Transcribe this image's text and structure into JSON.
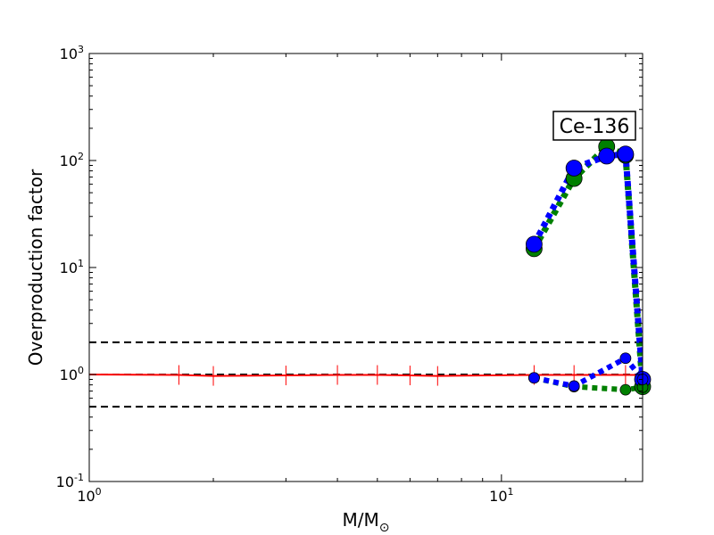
{
  "chart_data": {
    "type": "line",
    "xscale": "log",
    "yscale": "log",
    "xlim": [
      1,
      22
    ],
    "ylim": [
      0.1,
      1000
    ],
    "grid": false,
    "xlabel": "M/M",
    "xlabel_sub": "⊙",
    "ylabel": "Overproduction factor",
    "annotation": "Ce-136",
    "x_ticks": [
      {
        "value": 1,
        "base": "10",
        "exp": "0"
      },
      {
        "value": 10,
        "base": "10",
        "exp": "1"
      }
    ],
    "y_ticks": [
      {
        "value": 0.1,
        "base": "10",
        "exp": "-1"
      },
      {
        "value": 1,
        "base": "10",
        "exp": "0"
      },
      {
        "value": 10,
        "base": "10",
        "exp": "1"
      },
      {
        "value": 100,
        "base": "10",
        "exp": "2"
      },
      {
        "value": 1000,
        "base": "10",
        "exp": "3"
      }
    ],
    "reference_lines": [
      {
        "y": 2,
        "color": "#000000",
        "style": "dashed"
      },
      {
        "y": 1,
        "color": "#000000",
        "style": "dashed"
      },
      {
        "y": 0.5,
        "color": "#000000",
        "style": "dashed"
      }
    ],
    "series": [
      {
        "color": "#ff0000",
        "style": "solid",
        "marker": "vline",
        "points": [
          [
            1,
            1.0
          ],
          [
            1.65,
            0.99
          ],
          [
            2,
            0.97
          ],
          [
            3,
            0.98
          ],
          [
            4,
            0.99
          ],
          [
            5,
            0.99
          ],
          [
            6,
            0.98
          ],
          [
            7,
            0.97
          ],
          [
            12,
            0.99
          ],
          [
            15,
            0.99
          ],
          [
            20,
            0.99
          ],
          [
            22,
            0.99
          ]
        ]
      },
      {
        "color": "#008000",
        "style": "dotted",
        "marker": "circle",
        "marker_size": "large",
        "points": [
          [
            12,
            15
          ],
          [
            15,
            68
          ],
          [
            18,
            135
          ],
          [
            20,
            112
          ],
          [
            22,
            0.77
          ]
        ]
      },
      {
        "color": "#0000ff",
        "style": "dotted",
        "marker": "circle",
        "marker_size": "large",
        "points": [
          [
            12,
            16.5
          ],
          [
            15,
            85
          ],
          [
            18,
            110
          ],
          [
            20,
            115
          ],
          [
            22,
            0.9
          ]
        ]
      },
      {
        "color": "#008000",
        "style": "dotted",
        "marker": "circle",
        "marker_size": "small",
        "points": [
          [
            12,
            0.93
          ],
          [
            15,
            0.77
          ],
          [
            20,
            0.72
          ],
          [
            22,
            0.76
          ]
        ]
      },
      {
        "color": "#0000ff",
        "style": "dotted",
        "marker": "circle",
        "marker_size": "small",
        "points": [
          [
            12,
            0.93
          ],
          [
            15,
            0.78
          ],
          [
            20,
            1.42
          ],
          [
            22,
            0.9
          ]
        ]
      }
    ]
  }
}
